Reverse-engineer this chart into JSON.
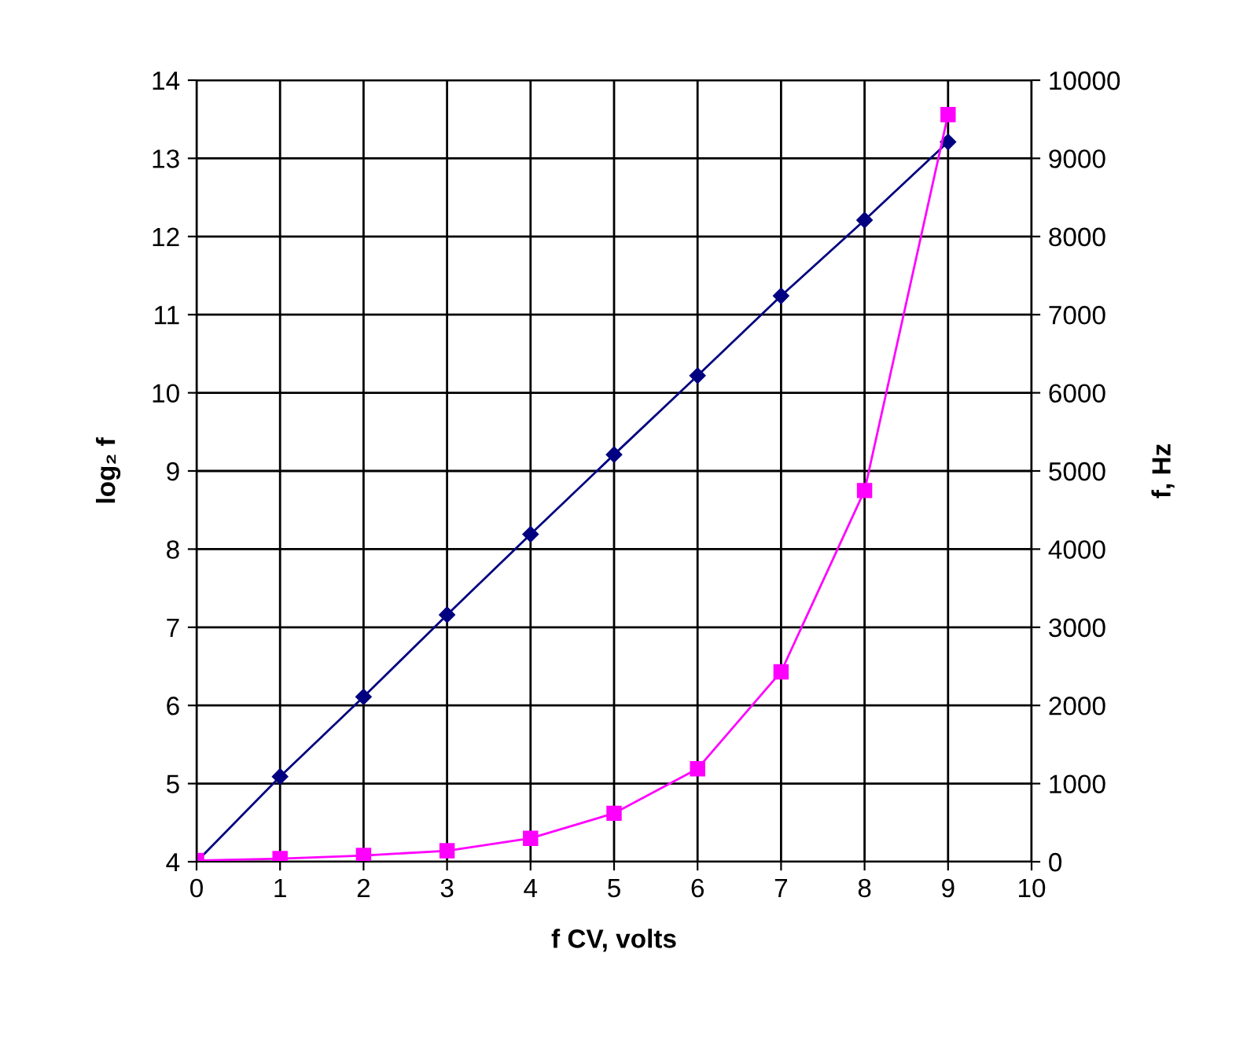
{
  "chart_data": {
    "type": "line",
    "xlabel": "f CV, volts",
    "ylabel": "log₂ f",
    "y2label": "f, Hz",
    "x": [
      0,
      1,
      2,
      3,
      4,
      5,
      6,
      7,
      8,
      9
    ],
    "series": [
      {
        "color": "#000080",
        "marker": "diamond",
        "values": [
          4.0,
          5.09,
          6.11,
          7.16,
          8.19,
          9.21,
          10.22,
          11.24,
          12.21,
          13.21
        ]
      },
      {
        "color": "#ff00ff",
        "marker": "square",
        "axis": "y2",
        "values": [
          16,
          40,
          80,
          140,
          300,
          620,
          1190,
          2430,
          4750,
          9560
        ]
      }
    ],
    "xlim": [
      0,
      10
    ],
    "xticks": [
      0,
      1,
      2,
      3,
      4,
      5,
      6,
      7,
      8,
      9,
      10
    ],
    "ylim": [
      4,
      14
    ],
    "yticks": [
      4,
      5,
      6,
      7,
      8,
      9,
      10,
      11,
      12,
      13,
      14
    ],
    "y2lim": [
      0,
      10000
    ],
    "y2ticks": [
      0,
      1000,
      2000,
      3000,
      4000,
      5000,
      6000,
      7000,
      8000,
      9000,
      10000
    ],
    "grid": true,
    "line_style": "solid"
  }
}
